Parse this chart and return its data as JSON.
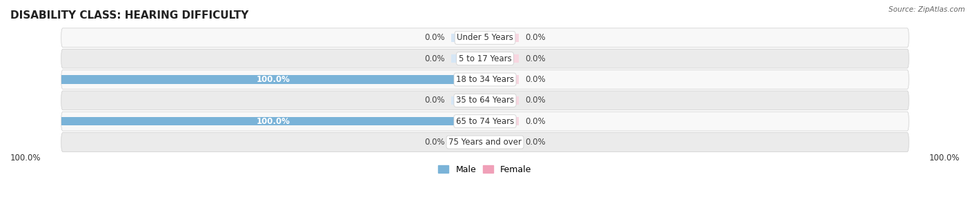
{
  "title": "DISABILITY CLASS: HEARING DIFFICULTY",
  "source": "Source: ZipAtlas.com",
  "categories": [
    "Under 5 Years",
    "5 to 17 Years",
    "18 to 34 Years",
    "35 to 64 Years",
    "65 to 74 Years",
    "75 Years and over"
  ],
  "male_values": [
    0.0,
    0.0,
    100.0,
    0.0,
    100.0,
    0.0
  ],
  "female_values": [
    0.0,
    0.0,
    0.0,
    0.0,
    0.0,
    0.0
  ],
  "male_color": "#7ab3d8",
  "female_color": "#f0a0b8",
  "bar_bg_male": "#d6e6f5",
  "bar_bg_female": "#f7d6e0",
  "row_bg_alt": "#ebebeb",
  "row_bg_main": "#f8f8f8",
  "title_fontsize": 11,
  "label_fontsize": 8.5,
  "category_fontsize": 8.5,
  "legend_fontsize": 9,
  "max_val": 100.0,
  "bar_height": 0.55,
  "figsize": [
    14.06,
    3.05
  ],
  "dpi": 100
}
